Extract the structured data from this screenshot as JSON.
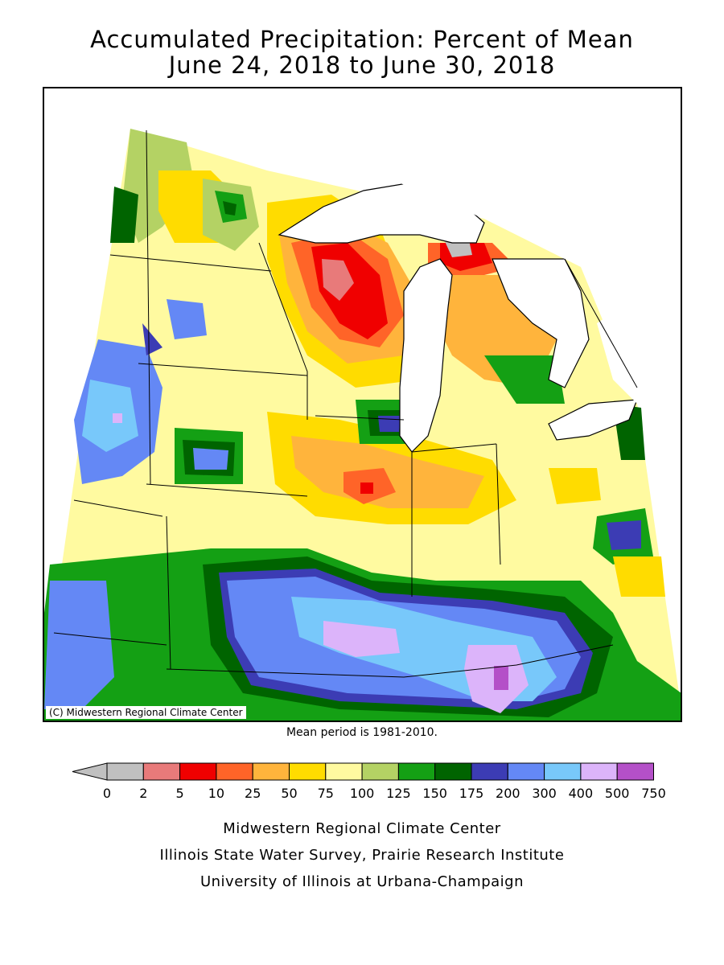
{
  "header": {
    "title_line1": "Accumulated Precipitation: Percent of Mean",
    "title_line2": "June 24, 2018 to June 30, 2018"
  },
  "map": {
    "copyright": "(C) Midwestern Regional Climate Center",
    "water_color": "#ffffff",
    "border_color": "#000000"
  },
  "mean_period": "Mean period is 1981-2010.",
  "legend": {
    "arrow_color": "#c0c0c0",
    "bins": [
      {
        "range": "0-2",
        "color": "#c0c0c0"
      },
      {
        "range": "2-5",
        "color": "#e87a7a"
      },
      {
        "range": "5-10",
        "color": "#f00000"
      },
      {
        "range": "10-25",
        "color": "#ff6428"
      },
      {
        "range": "25-50",
        "color": "#ffb43c"
      },
      {
        "range": "50-75",
        "color": "#ffdc00"
      },
      {
        "range": "75-100",
        "color": "#fffaa0"
      },
      {
        "range": "100-125",
        "color": "#b4d264"
      },
      {
        "range": "125-150",
        "color": "#14a014"
      },
      {
        "range": "150-175",
        "color": "#006400"
      },
      {
        "range": "175-200",
        "color": "#3c3cb4"
      },
      {
        "range": "200-300",
        "color": "#6488f5"
      },
      {
        "range": "300-400",
        "color": "#78c8fa"
      },
      {
        "range": "400-500",
        "color": "#dcb4fa"
      },
      {
        "range": "500-750",
        "color": "#b450c8"
      }
    ],
    "ticks": [
      "0",
      "2",
      "5",
      "10",
      "25",
      "50",
      "75",
      "100",
      "125",
      "150",
      "175",
      "200",
      "300",
      "400",
      "500",
      "750"
    ]
  },
  "credits": {
    "line1": "Midwestern Regional Climate Center",
    "line2": "Illinois State Water Survey, Prairie Research Institute",
    "line3": "University of Illinois at Urbana-Champaign"
  }
}
